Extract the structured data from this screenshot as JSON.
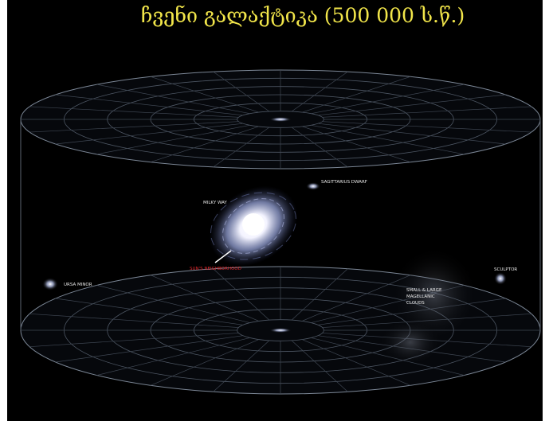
{
  "title": "ჩვენი გალაქტიკა (500 000 ს.წ.)",
  "labels": {
    "milky_way": "MILKY WAY",
    "sagittarius": "SAGITTARIUS DWARF",
    "sun": "SUN'S NEIGHBORHOOD",
    "ursa_minor": "URSA MINOR",
    "magellanic": [
      "SMALL & LARGE",
      "MAGELLANIC",
      "CLOUDS"
    ],
    "sculptor": "SCULPTOR"
  }
}
